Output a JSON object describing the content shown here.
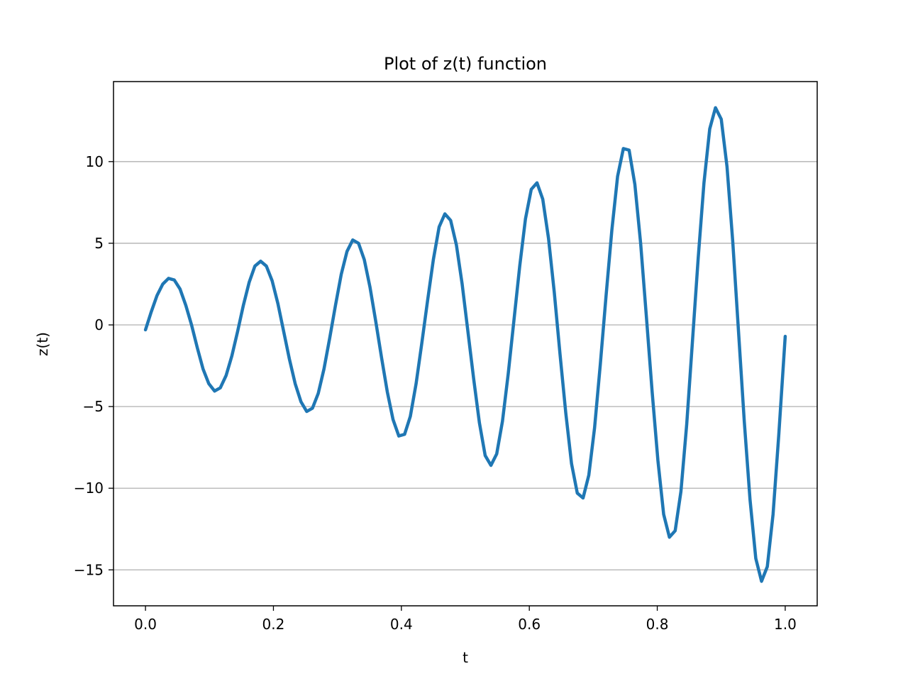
{
  "chart_data": {
    "type": "line",
    "title": "Plot of z(t) function",
    "xlabel": "t",
    "ylabel": "z(t)",
    "xlim": [
      -0.05,
      1.05
    ],
    "ylim": [
      -17.2,
      14.9
    ],
    "grid": "y-only",
    "legend": "none",
    "x_ticks": [
      0.0,
      0.2,
      0.4,
      0.6,
      0.8,
      1.0
    ],
    "x_tick_labels": [
      "0.0",
      "0.2",
      "0.4",
      "0.6",
      "0.8",
      "1.0"
    ],
    "y_ticks": [
      -15,
      -10,
      -5,
      0,
      5,
      10
    ],
    "y_tick_labels": [
      "−15",
      "−10",
      "−5",
      "0",
      "5",
      "10"
    ],
    "line_color": "#1f77b4",
    "series": [
      {
        "points": [
          [
            0.0,
            -0.3
          ],
          [
            0.009,
            0.8
          ],
          [
            0.018,
            1.8
          ],
          [
            0.027,
            2.5
          ],
          [
            0.036,
            2.85
          ],
          [
            0.045,
            2.75
          ],
          [
            0.054,
            2.2
          ],
          [
            0.063,
            1.2
          ],
          [
            0.072,
            0.0
          ],
          [
            0.081,
            -1.4
          ],
          [
            0.09,
            -2.7
          ],
          [
            0.099,
            -3.6
          ],
          [
            0.108,
            -4.05
          ],
          [
            0.117,
            -3.85
          ],
          [
            0.126,
            -3.1
          ],
          [
            0.135,
            -1.9
          ],
          [
            0.144,
            -0.4
          ],
          [
            0.153,
            1.2
          ],
          [
            0.162,
            2.6
          ],
          [
            0.171,
            3.6
          ],
          [
            0.18,
            3.9
          ],
          [
            0.189,
            3.6
          ],
          [
            0.198,
            2.7
          ],
          [
            0.207,
            1.3
          ],
          [
            0.216,
            -0.4
          ],
          [
            0.225,
            -2.1
          ],
          [
            0.234,
            -3.6
          ],
          [
            0.243,
            -4.7
          ],
          [
            0.252,
            -5.3
          ],
          [
            0.261,
            -5.1
          ],
          [
            0.27,
            -4.2
          ],
          [
            0.279,
            -2.7
          ],
          [
            0.288,
            -0.8
          ],
          [
            0.297,
            1.2
          ],
          [
            0.306,
            3.1
          ],
          [
            0.315,
            4.5
          ],
          [
            0.324,
            5.2
          ],
          [
            0.333,
            5.0
          ],
          [
            0.342,
            4.0
          ],
          [
            0.351,
            2.3
          ],
          [
            0.36,
            0.2
          ],
          [
            0.369,
            -2.0
          ],
          [
            0.378,
            -4.1
          ],
          [
            0.387,
            -5.8
          ],
          [
            0.396,
            -6.8
          ],
          [
            0.405,
            -6.7
          ],
          [
            0.414,
            -5.6
          ],
          [
            0.423,
            -3.6
          ],
          [
            0.432,
            -1.1
          ],
          [
            0.441,
            1.5
          ],
          [
            0.45,
            4.0
          ],
          [
            0.459,
            6.0
          ],
          [
            0.468,
            6.8
          ],
          [
            0.477,
            6.4
          ],
          [
            0.486,
            4.9
          ],
          [
            0.495,
            2.5
          ],
          [
            0.504,
            -0.4
          ],
          [
            0.513,
            -3.3
          ],
          [
            0.522,
            -6.0
          ],
          [
            0.531,
            -8.0
          ],
          [
            0.54,
            -8.6
          ],
          [
            0.549,
            -7.9
          ],
          [
            0.558,
            -5.9
          ],
          [
            0.567,
            -3.0
          ],
          [
            0.576,
            0.3
          ],
          [
            0.585,
            3.6
          ],
          [
            0.594,
            6.5
          ],
          [
            0.603,
            8.3
          ],
          [
            0.612,
            8.7
          ],
          [
            0.621,
            7.7
          ],
          [
            0.63,
            5.3
          ],
          [
            0.639,
            2.0
          ],
          [
            0.648,
            -1.8
          ],
          [
            0.657,
            -5.4
          ],
          [
            0.666,
            -8.5
          ],
          [
            0.675,
            -10.3
          ],
          [
            0.684,
            -10.6
          ],
          [
            0.693,
            -9.2
          ],
          [
            0.702,
            -6.3
          ],
          [
            0.711,
            -2.4
          ],
          [
            0.72,
            1.8
          ],
          [
            0.729,
            5.8
          ],
          [
            0.738,
            9.1
          ],
          [
            0.747,
            10.8
          ],
          [
            0.756,
            10.7
          ],
          [
            0.765,
            8.6
          ],
          [
            0.774,
            5.0
          ],
          [
            0.783,
            0.5
          ],
          [
            0.792,
            -4.1
          ],
          [
            0.801,
            -8.3
          ],
          [
            0.81,
            -11.6
          ],
          [
            0.819,
            -13.0
          ],
          [
            0.828,
            -12.6
          ],
          [
            0.837,
            -10.2
          ],
          [
            0.846,
            -6.1
          ],
          [
            0.855,
            -1.0
          ],
          [
            0.864,
            4.1
          ],
          [
            0.873,
            8.7
          ],
          [
            0.882,
            12.0
          ],
          [
            0.891,
            13.3
          ],
          [
            0.9,
            12.6
          ],
          [
            0.909,
            9.7
          ],
          [
            0.918,
            5.1
          ],
          [
            0.927,
            -0.4
          ],
          [
            0.936,
            -5.9
          ],
          [
            0.945,
            -10.7
          ],
          [
            0.954,
            -14.3
          ],
          [
            0.963,
            -15.7
          ],
          [
            0.972,
            -14.8
          ],
          [
            0.981,
            -11.6
          ],
          [
            0.99,
            -6.7
          ],
          [
            1.0,
            -0.7
          ]
        ]
      }
    ]
  }
}
